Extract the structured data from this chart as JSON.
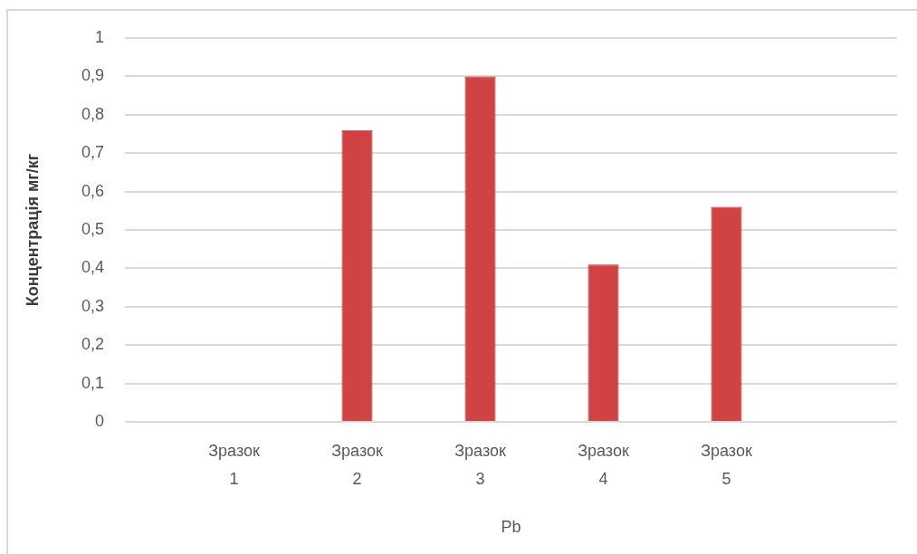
{
  "chart_data": {
    "type": "bar",
    "categories": [
      "Зразок 1",
      "Зразок 2",
      "Зразок 3",
      "Зразок 4",
      "Зразок 5"
    ],
    "values": [
      null,
      0.76,
      0.9,
      0.41,
      0.56
    ],
    "color": "#d14343",
    "xlabel": "Pb",
    "ylabel": "Концентрація мг/кг",
    "ylim": [
      0,
      1
    ],
    "yticks": [
      0,
      {
        "value": 0.1,
        "label": "0,1"
      },
      {
        "value": 0.2,
        "label": "0,2"
      },
      {
        "value": 0.3,
        "label": "0,3"
      },
      {
        "value": 0.4,
        "label": "0,4"
      },
      {
        "value": 0.5,
        "label": "0,5"
      },
      {
        "value": 0.6,
        "label": "0,6"
      },
      {
        "value": 0.7,
        "label": "0,7"
      },
      {
        "value": 0.8,
        "label": "0,8"
      },
      {
        "value": 0.9,
        "label": "0,9"
      },
      1
    ],
    "grid": "y"
  }
}
